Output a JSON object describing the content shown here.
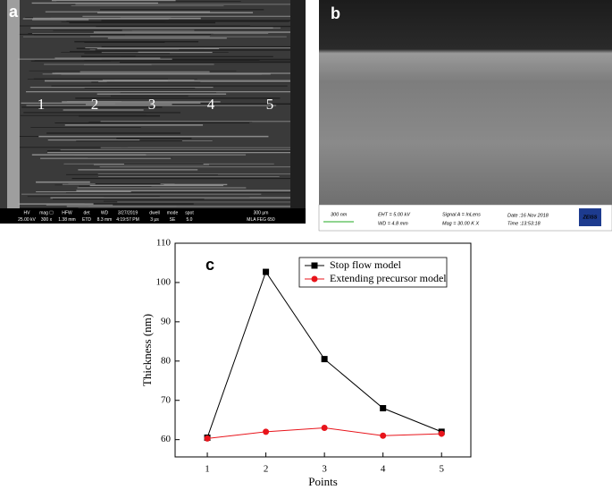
{
  "panels": {
    "a": {
      "label": "a",
      "points": [
        "1",
        "2",
        "3",
        "4",
        "5"
      ],
      "info_top": [
        "HV",
        "mag ☐",
        "HFW",
        "det",
        "WD",
        "3/27/2019",
        "dwell",
        "mode",
        "spot",
        "300 μm"
      ],
      "info_bottom": [
        "25.00 kV",
        "300 x",
        "1.38 mm",
        "ETD",
        "8.3 mm",
        "4:19:57 PM",
        "3 μs",
        "SE",
        "5.0",
        "MLA FEG 650"
      ]
    },
    "b": {
      "label": "b",
      "scale": "300 nm",
      "eht": "EHT = 5.00 kV",
      "wd": "WD = 4.8 mm",
      "signal": "Signal A = InLens",
      "mag": "Mag = 30.00 K X",
      "date": "Date :16 Nov 2018",
      "time": "Time :13:53:18",
      "logo": "ZEISS"
    }
  },
  "chart_data": {
    "type": "line",
    "label": "c",
    "x_label": "Points",
    "y_label": "Thickness (nm)",
    "x": [
      1,
      2,
      3,
      4,
      5
    ],
    "series": [
      {
        "name": "Stop flow model",
        "color": "#000000",
        "marker": "square",
        "values": [
          60.5,
          102.7,
          80.5,
          68,
          62
        ]
      },
      {
        "name": "Extending precursor model",
        "color": "#e8141b",
        "marker": "circle",
        "values": [
          60.3,
          62,
          63,
          61,
          61.5
        ]
      }
    ],
    "xlim": [
      0.45,
      5.5
    ],
    "xticks": [
      1,
      2,
      3,
      4,
      5
    ],
    "ylim": [
      55.6,
      110
    ],
    "yticks": [
      60,
      70,
      80,
      90,
      100,
      110
    ],
    "legend": "upper right"
  }
}
